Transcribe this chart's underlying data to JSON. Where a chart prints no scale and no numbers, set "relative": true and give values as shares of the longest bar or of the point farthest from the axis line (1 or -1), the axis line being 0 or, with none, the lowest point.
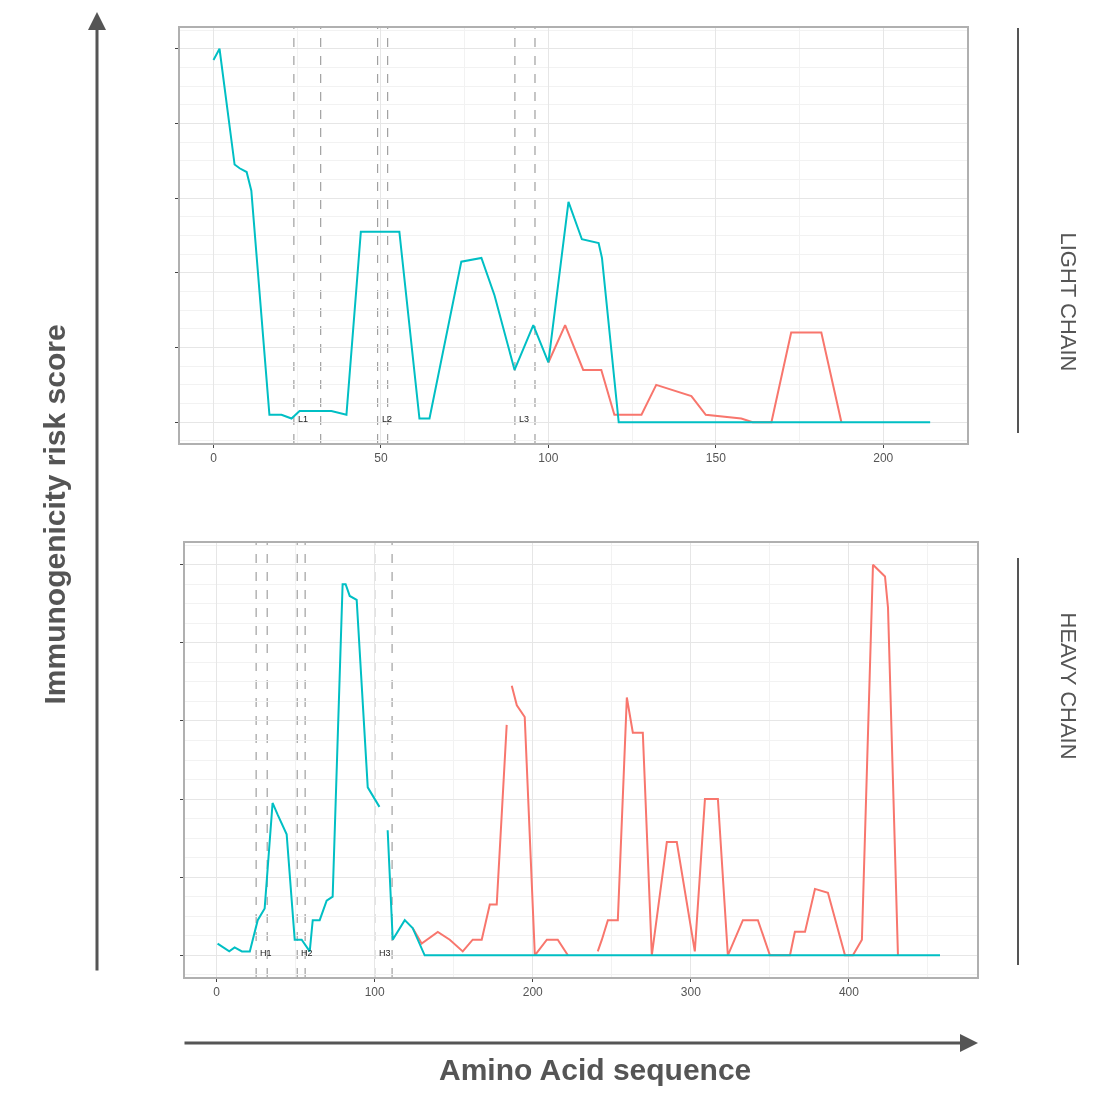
{
  "chart_data": [
    {
      "type": "line",
      "y2label": "LIGHT CHAIN",
      "ylabel": "Immunogenicity risk score",
      "relative": true,
      "grid": true,
      "xlim": [
        -10,
        225
      ],
      "xticks": [
        0,
        50,
        100,
        150,
        200
      ],
      "ref_lines": [
        {
          "axis": "x",
          "value": 24,
          "label": "L1",
          "line_style": "dashed",
          "color": "#a0a0a0"
        },
        {
          "axis": "x",
          "value": 32,
          "line_style": "dashed",
          "color": "#a0a0a0"
        },
        {
          "axis": "x",
          "value": 49,
          "label": "L2",
          "line_style": "dashed",
          "color": "#a0a0a0"
        },
        {
          "axis": "x",
          "value": 52,
          "line_style": "dashed",
          "color": "#a0a0a0"
        },
        {
          "axis": "x",
          "value": 90,
          "label": "L3",
          "line_style": "dashed",
          "color": "#a0a0a0"
        },
        {
          "axis": "x",
          "value": 96,
          "line_style": "dashed",
          "color": "#a0a0a0"
        }
      ],
      "series": [
        {
          "color": "#f8766d",
          "x": [
            100,
            105,
            110.4,
            115.8,
            119.7,
            127.8,
            132.2,
            142.7,
            147,
            157.6,
            161,
            166.6,
            172.5,
            181.5,
            187.5
          ],
          "values": [
            0.16,
            0.26,
            0.14,
            0.14,
            0.02,
            0.02,
            0.1,
            0.07,
            0.02,
            0.01,
            0,
            0,
            0.24,
            0.24,
            0
          ]
        },
        {
          "color": "#00bfc4",
          "x": [
            0,
            1.8,
            6.3,
            7.8,
            9.9,
            11.3,
            16.7,
            20.3,
            23.3,
            25.7,
            35.2,
            39.7,
            44,
            55.5,
            61.5,
            64.5,
            74,
            80,
            83.9,
            89.9,
            95.5,
            100,
            106,
            110,
            115,
            116,
            121,
            214
          ],
          "values": [
            0.97,
            1.0,
            0.69,
            0.68,
            0.67,
            0.62,
            0.02,
            0.02,
            0.01,
            0.03,
            0.03,
            0.02,
            0.51,
            0.51,
            0.01,
            0.01,
            0.43,
            0.44,
            0.34,
            0.14,
            0.26,
            0.16,
            0.59,
            0.49,
            0.48,
            0.44,
            0,
            0
          ]
        }
      ]
    },
    {
      "type": "line",
      "y2label": "HEAVY CHAIN",
      "xlabel": "Amino Acid sequence",
      "relative": true,
      "grid": true,
      "xlim": [
        -20,
        481
      ],
      "xticks": [
        0,
        100,
        200,
        300,
        400
      ],
      "ref_lines": [
        {
          "axis": "x",
          "value": 25,
          "label": "H1",
          "line_style": "dashed",
          "color": "#a0a0a0"
        },
        {
          "axis": "x",
          "value": 32,
          "line_style": "dashed",
          "color": "#a0a0a0"
        },
        {
          "axis": "x",
          "value": 51,
          "label": "H2",
          "line_style": "dashed",
          "color": "#a0a0a0"
        },
        {
          "axis": "x",
          "value": 56,
          "line_style": "dashed",
          "color": "#a0a0a0"
        },
        {
          "axis": "x",
          "value": 100,
          "label": "H3",
          "line_style": "dashed",
          "color": "#a0a0a0"
        },
        {
          "axis": "x",
          "value": 111,
          "line_style": "dashed",
          "color": "#a0a0a0"
        }
      ],
      "series": [
        {
          "color": "#f8766d",
          "x": [
            124,
            129.7,
            139.9,
            147.5,
            155.7,
            162,
            167.7,
            172.8,
            177.2,
            183.5,
            185,
            186.7,
            189.9,
            194.9,
            201.3,
            208.9,
            215.8,
            222.2,
            230,
            241.1,
            243.7,
            247.5,
            253.8,
            259.5,
            263.3,
            269.6,
            275.3,
            284.8,
            291.1,
            302.5,
            308.9,
            317.1,
            323.4,
            332.9,
            342.4,
            350,
            362.7,
            365.8,
            372.2,
            378.5,
            386.7,
            397.5,
            402.5,
            408.2,
            415.2,
            422.8,
            424.7,
            431
          ],
          "values": [
            0.07,
            0.03,
            0.06,
            0.04,
            0.01,
            0.04,
            0.04,
            0.13,
            0.13,
            0.59,
            null,
            0.69,
            0.64,
            0.61,
            0,
            0.04,
            0.04,
            0,
            null,
            0.01,
            0.04,
            0.09,
            0.09,
            0.66,
            0.57,
            0.57,
            0,
            0.29,
            0.29,
            0.01,
            0.4,
            0.4,
            0,
            0.09,
            0.09,
            0,
            0,
            0.06,
            0.06,
            0.17,
            0.16,
            0,
            0,
            0.04,
            1.0,
            0.97,
            0.89,
            0
          ]
        },
        {
          "color": "#00bfc4",
          "x": [
            0.6,
            8,
            11.4,
            16,
            21,
            26,
            30.4,
            35.4,
            38.6,
            44.3,
            49.4,
            53.8,
            58.9,
            60.8,
            65.2,
            69.6,
            73.4,
            79.7,
            81.6,
            84.2,
            88.6,
            95.6,
            103,
            105,
            108.2,
            111.4,
            119,
            124,
            131.6,
            457.6
          ],
          "values": [
            0.03,
            0.01,
            0.02,
            0.01,
            0.01,
            0.09,
            0.12,
            0.39,
            0.36,
            0.31,
            0.04,
            0.04,
            0.01,
            0.09,
            0.09,
            0.14,
            0.15,
            0.95,
            0.95,
            0.92,
            0.91,
            0.43,
            0.38,
            null,
            0.32,
            0.04,
            0.09,
            0.07,
            0,
            0
          ]
        }
      ]
    }
  ]
}
